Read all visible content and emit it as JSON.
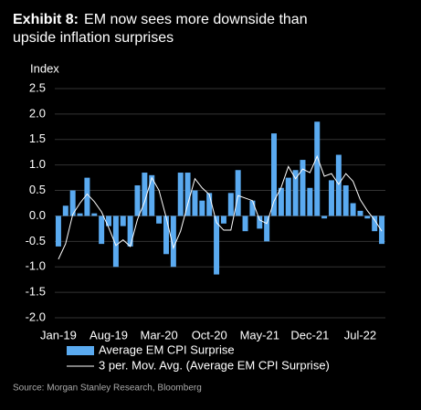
{
  "chart_data": {
    "type": "bar_line",
    "exhibit": "Exhibit 8:",
    "title": "EM now sees more downside than upside inflation surprises",
    "y_label": "Index",
    "source": "Source: Morgan Stanley Research, Bloomberg",
    "categories": [
      "Jan-19",
      null,
      null,
      null,
      null,
      null,
      null,
      "Aug-19",
      null,
      null,
      null,
      null,
      null,
      null,
      "Mar-20",
      null,
      null,
      null,
      null,
      null,
      null,
      "Oct-20",
      null,
      null,
      null,
      null,
      null,
      null,
      "May-21",
      null,
      null,
      null,
      null,
      null,
      null,
      "Dec-21",
      null,
      null,
      null,
      null,
      null,
      null,
      "Jul-22",
      null,
      null,
      null
    ],
    "series": [
      {
        "name": "Average EM CPI Surprise",
        "color": "#5aaaf0",
        "kind": "bar",
        "values": [
          -0.6,
          0.2,
          0.5,
          0.05,
          0.75,
          0.05,
          -0.55,
          -0.2,
          -1.0,
          -0.2,
          -0.6,
          0.6,
          0.85,
          0.8,
          -0.15,
          -0.75,
          -1.0,
          0.85,
          0.85,
          0.5,
          0.3,
          0.45,
          -1.15,
          -0.15,
          0.45,
          0.9,
          -0.3,
          0.3,
          -0.25,
          -0.5,
          1.62,
          0.55,
          0.75,
          0.9,
          1.1,
          0.55,
          1.85,
          -0.05,
          0.7,
          1.2,
          0.6,
          0.25,
          0.1,
          -0.05,
          -0.3,
          -0.55
        ]
      },
      {
        "name": "3 per. Mov. Avg. (Average EM CPI Surprise)",
        "color": "#ffffff",
        "kind": "line",
        "values": [
          -0.85,
          -0.55,
          0.03,
          0.25,
          0.43,
          0.28,
          0.08,
          -0.23,
          -0.58,
          -0.47,
          -0.6,
          -0.07,
          0.28,
          0.75,
          0.5,
          -0.03,
          -0.63,
          -0.3,
          0.23,
          0.73,
          0.55,
          0.42,
          -0.13,
          -0.28,
          -0.28,
          0.4,
          0.35,
          0.3,
          -0.08,
          -0.15,
          0.29,
          0.56,
          0.97,
          0.73,
          0.92,
          0.85,
          1.17,
          0.78,
          0.83,
          0.62,
          0.83,
          0.68,
          0.32,
          0.1,
          -0.08,
          -0.3
        ]
      }
    ],
    "ylim": [
      -2,
      2.5
    ],
    "yticks": [
      {
        "value": -2,
        "label": "-2.0"
      },
      -1.5,
      {
        "value": -1,
        "label": "-1.0"
      },
      -0.5,
      {
        "value": 0,
        "label": "0.0"
      },
      0.5,
      {
        "value": 1,
        "label": "1.0"
      },
      1.5,
      {
        "value": 2,
        "label": "2.0"
      },
      2.5
    ],
    "grid": true
  }
}
